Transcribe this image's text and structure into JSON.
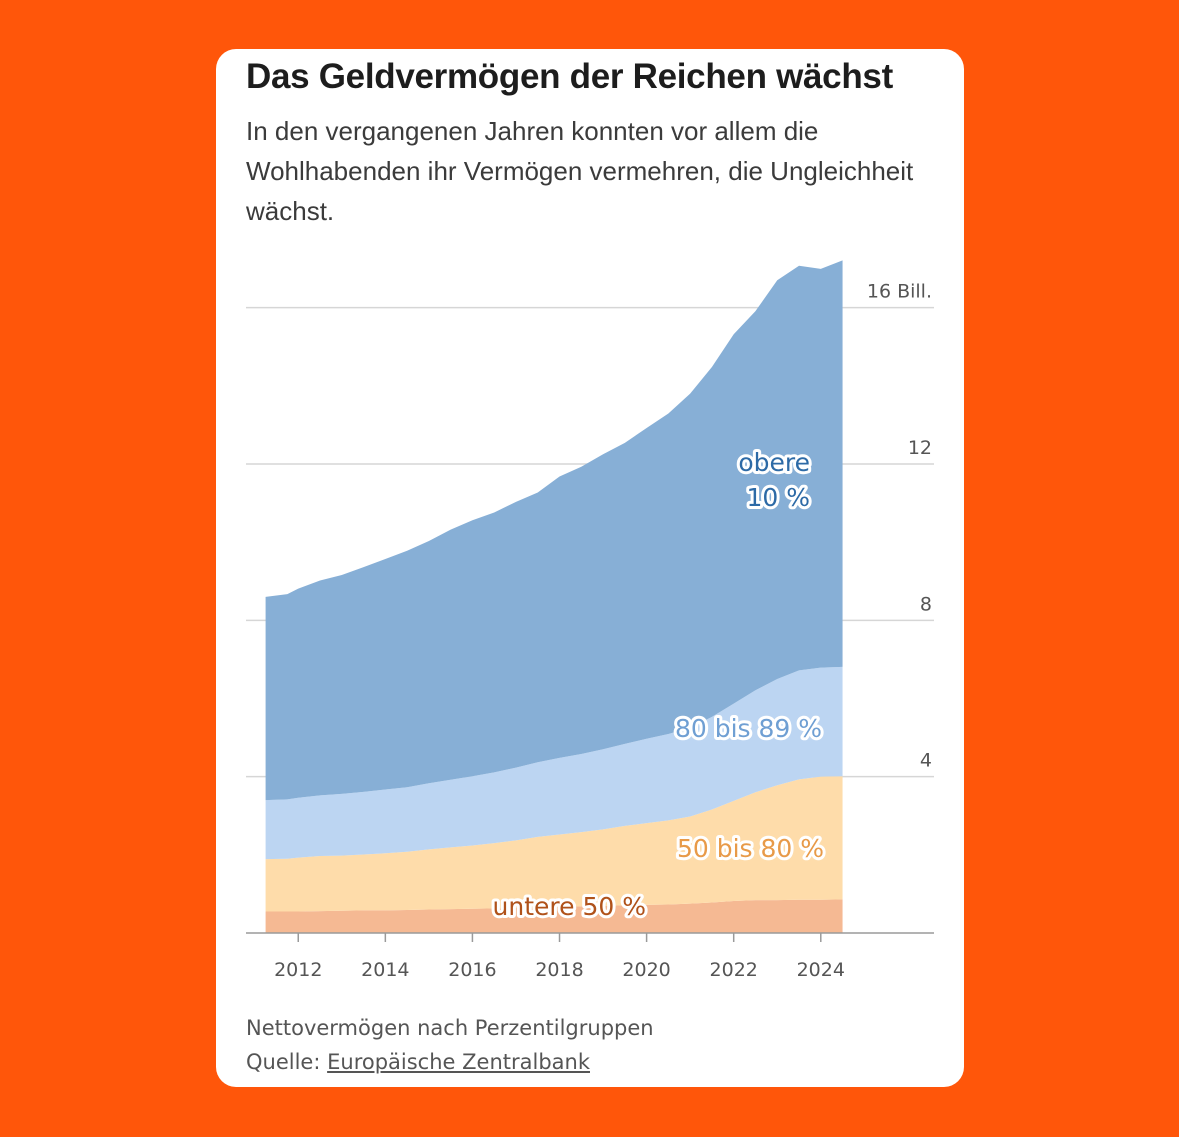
{
  "chart_data": {
    "type": "area",
    "stacked": true,
    "title": "Das Geldvermögen der Reichen wächst",
    "subtitle": "In den vergangenen Jahren konnten vor allem die Wohlhabenden ihr Vermögen vermehren, die Ungleichheit wächst.",
    "x": [
      2011.25,
      2011.75,
      2012.0,
      2012.5,
      2013.0,
      2013.5,
      2014.0,
      2014.5,
      2015.0,
      2015.5,
      2016.0,
      2016.5,
      2017.0,
      2017.5,
      2018.0,
      2018.5,
      2019.0,
      2019.5,
      2020.0,
      2020.5,
      2021.0,
      2021.5,
      2022.0,
      2022.5,
      2023.0,
      2023.5,
      2024.0,
      2024.5
    ],
    "series": [
      {
        "name": "untere 50 %",
        "color": "#f5b993",
        "label_color": "#b0521a",
        "values": [
          0.55,
          0.55,
          0.55,
          0.56,
          0.57,
          0.58,
          0.58,
          0.59,
          0.6,
          0.61,
          0.62,
          0.63,
          0.64,
          0.66,
          0.67,
          0.68,
          0.69,
          0.71,
          0.72,
          0.73,
          0.75,
          0.78,
          0.82,
          0.84,
          0.84,
          0.85,
          0.85,
          0.86
        ]
      },
      {
        "name": "50 bis 80 %",
        "color": "#fedcaa",
        "label_color": "#e89a48",
        "values": [
          1.34,
          1.35,
          1.38,
          1.41,
          1.41,
          1.43,
          1.46,
          1.49,
          1.54,
          1.58,
          1.62,
          1.67,
          1.73,
          1.8,
          1.85,
          1.9,
          1.96,
          2.03,
          2.09,
          2.15,
          2.23,
          2.38,
          2.56,
          2.76,
          2.94,
          3.08,
          3.15,
          3.15
        ]
      },
      {
        "name": "80 bis 89 %",
        "color": "#bcd5f2",
        "label_color": "#6f9fd3",
        "values": [
          1.51,
          1.52,
          1.53,
          1.55,
          1.58,
          1.6,
          1.63,
          1.65,
          1.69,
          1.73,
          1.77,
          1.81,
          1.86,
          1.91,
          1.96,
          2.0,
          2.05,
          2.1,
          2.16,
          2.21,
          2.27,
          2.37,
          2.49,
          2.61,
          2.72,
          2.79,
          2.79,
          2.8
        ]
      },
      {
        "name": "obere 10 %",
        "color": "#87afd6",
        "label_color": "#2d6aa6",
        "values": [
          5.2,
          5.25,
          5.35,
          5.5,
          5.6,
          5.75,
          5.9,
          6.05,
          6.2,
          6.4,
          6.55,
          6.65,
          6.8,
          6.9,
          7.2,
          7.35,
          7.55,
          7.7,
          7.95,
          8.2,
          8.55,
          8.95,
          9.45,
          9.7,
          10.2,
          10.35,
          10.2,
          10.4
        ]
      }
    ],
    "yaxis": {
      "ticks": [
        4,
        8,
        12,
        16
      ],
      "tick_labels": [
        "4",
        "8",
        "12",
        "16 Bill."
      ],
      "ylim": [
        0,
        17.5
      ]
    },
    "xaxis": {
      "ticks": [
        2012,
        2014,
        2016,
        2018,
        2020,
        2022,
        2024
      ],
      "xlim": [
        2010.8,
        2026.6
      ]
    },
    "grid": true,
    "legend": "inline labels",
    "labels": {
      "top10_line1": "obere",
      "top10_line2": "10 %",
      "p80_89": "80 bis 89 %",
      "p50_80": "50 bis 80 %",
      "bottom50": "untere 50 %"
    },
    "footer": {
      "note": "Nettovermögen nach Perzentilgruppen",
      "source_prefix": "Quelle: ",
      "source_link": "Europäische Zentralbank"
    }
  }
}
